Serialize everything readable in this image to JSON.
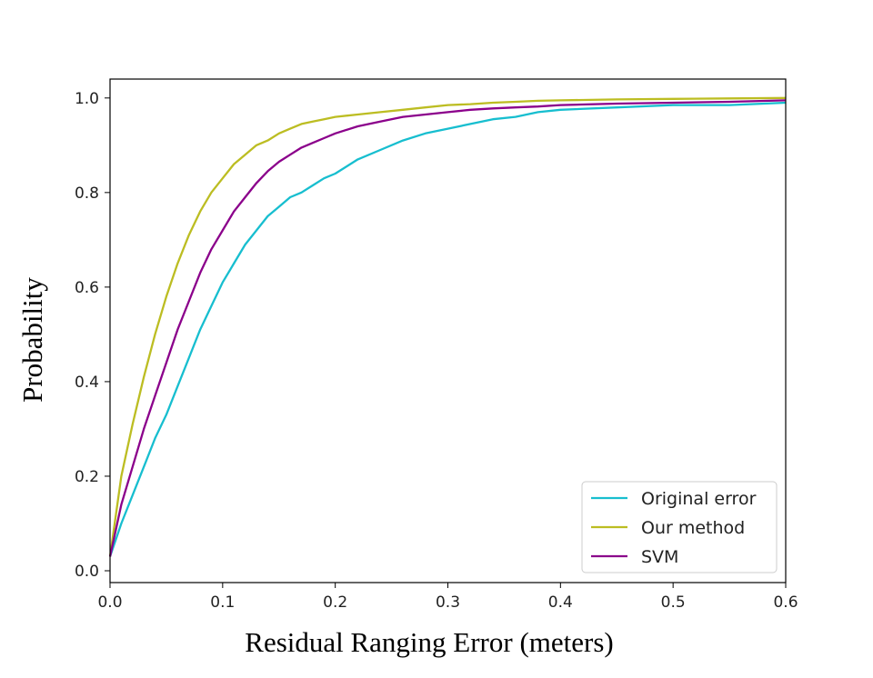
{
  "chart_data": {
    "type": "line",
    "title": "",
    "xlabel": "Residual Ranging Error (meters)",
    "ylabel": "Probability",
    "xlim": [
      0.0,
      0.6
    ],
    "ylim": [
      -0.025,
      1.04
    ],
    "xticks": [
      "0.0",
      "0.1",
      "0.2",
      "0.3",
      "0.4",
      "0.5",
      "0.6"
    ],
    "yticks": [
      "0.0",
      "0.2",
      "0.4",
      "0.6",
      "0.8",
      "1.0"
    ],
    "grid": false,
    "legend_position": "lower-right",
    "series": [
      {
        "name": "Original error",
        "color": "#17becf",
        "x": [
          0.0,
          0.01,
          0.02,
          0.03,
          0.04,
          0.05,
          0.06,
          0.07,
          0.08,
          0.09,
          0.1,
          0.11,
          0.12,
          0.13,
          0.14,
          0.15,
          0.16,
          0.17,
          0.18,
          0.19,
          0.2,
          0.22,
          0.24,
          0.26,
          0.28,
          0.3,
          0.32,
          0.34,
          0.36,
          0.38,
          0.4,
          0.45,
          0.5,
          0.55,
          0.6
        ],
        "values": [
          0.03,
          0.1,
          0.16,
          0.22,
          0.28,
          0.33,
          0.39,
          0.45,
          0.51,
          0.56,
          0.61,
          0.65,
          0.69,
          0.72,
          0.75,
          0.77,
          0.79,
          0.8,
          0.815,
          0.83,
          0.84,
          0.87,
          0.89,
          0.91,
          0.925,
          0.935,
          0.945,
          0.955,
          0.96,
          0.97,
          0.975,
          0.98,
          0.985,
          0.985,
          0.99
        ]
      },
      {
        "name": "Our method",
        "color": "#bcbd22",
        "x": [
          0.0,
          0.01,
          0.02,
          0.03,
          0.04,
          0.05,
          0.06,
          0.07,
          0.08,
          0.09,
          0.1,
          0.11,
          0.12,
          0.13,
          0.14,
          0.15,
          0.16,
          0.17,
          0.18,
          0.19,
          0.2,
          0.22,
          0.24,
          0.26,
          0.28,
          0.3,
          0.32,
          0.34,
          0.36,
          0.38,
          0.4,
          0.45,
          0.5,
          0.55,
          0.6
        ],
        "values": [
          0.03,
          0.2,
          0.31,
          0.41,
          0.5,
          0.58,
          0.65,
          0.71,
          0.76,
          0.8,
          0.83,
          0.86,
          0.88,
          0.9,
          0.91,
          0.925,
          0.935,
          0.945,
          0.95,
          0.955,
          0.96,
          0.965,
          0.97,
          0.975,
          0.98,
          0.985,
          0.987,
          0.99,
          0.992,
          0.994,
          0.995,
          0.997,
          0.998,
          0.999,
          1.0
        ]
      },
      {
        "name": "SVM",
        "color": "#8b008b",
        "x": [
          0.0,
          0.01,
          0.02,
          0.03,
          0.04,
          0.05,
          0.06,
          0.07,
          0.08,
          0.09,
          0.1,
          0.11,
          0.12,
          0.13,
          0.14,
          0.15,
          0.16,
          0.17,
          0.18,
          0.19,
          0.2,
          0.22,
          0.24,
          0.26,
          0.28,
          0.3,
          0.32,
          0.34,
          0.36,
          0.38,
          0.4,
          0.45,
          0.5,
          0.55,
          0.6
        ],
        "values": [
          0.03,
          0.14,
          0.22,
          0.3,
          0.37,
          0.44,
          0.51,
          0.57,
          0.63,
          0.68,
          0.72,
          0.76,
          0.79,
          0.82,
          0.845,
          0.865,
          0.88,
          0.895,
          0.905,
          0.915,
          0.925,
          0.94,
          0.95,
          0.96,
          0.965,
          0.97,
          0.975,
          0.978,
          0.98,
          0.982,
          0.985,
          0.988,
          0.99,
          0.992,
          0.995
        ]
      }
    ]
  }
}
